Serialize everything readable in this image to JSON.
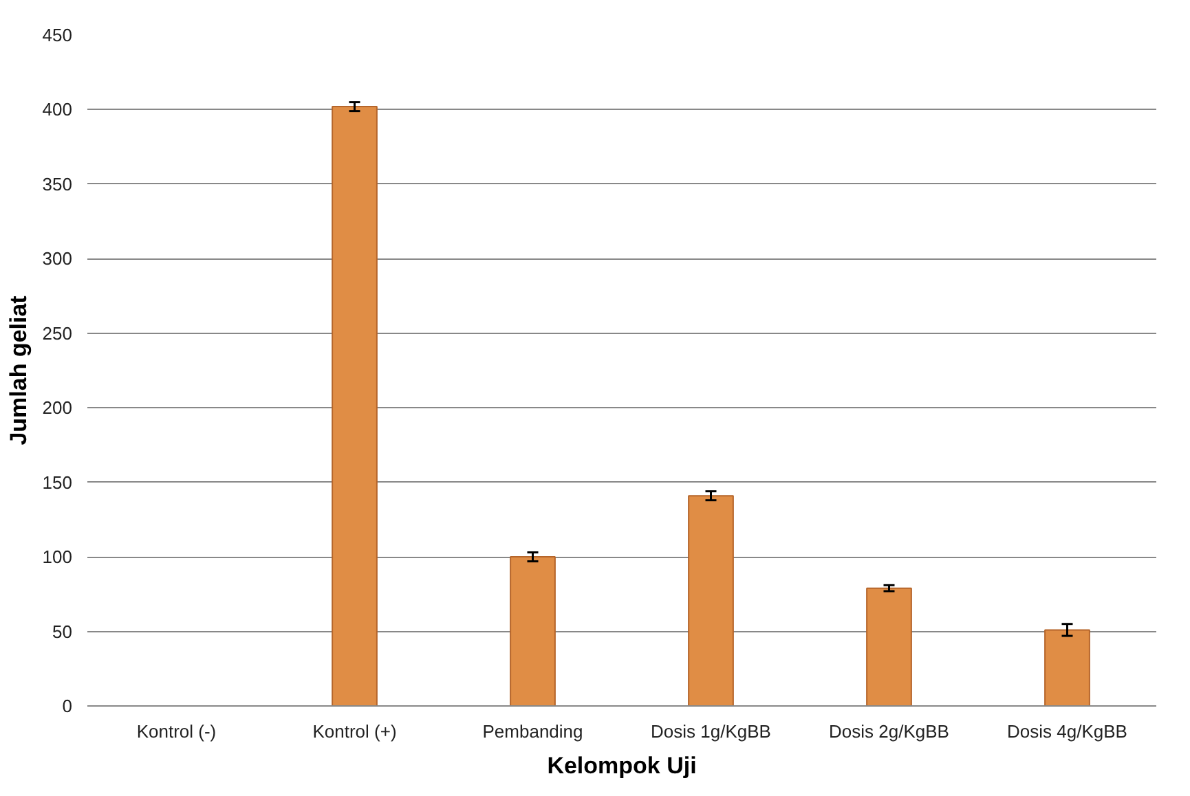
{
  "chart_data": {
    "type": "bar",
    "xlabel": "Kelompok Uji",
    "ylabel": "Jumlah geliat",
    "categories": [
      "Kontrol (-)",
      "Kontrol (+)",
      "Pembanding",
      "Dosis 1g/KgBB",
      "Dosis 2g/KgBB",
      "Dosis 4g/KgBB"
    ],
    "values": [
      null,
      402,
      100,
      141,
      79,
      51
    ],
    "errors": [
      null,
      3,
      3,
      3,
      2,
      4
    ],
    "color": "#e08d45",
    "ylim": [
      0,
      450
    ],
    "yticks": [
      0,
      50,
      100,
      150,
      200,
      250,
      300,
      350,
      400,
      450
    ],
    "grid": "y"
  }
}
